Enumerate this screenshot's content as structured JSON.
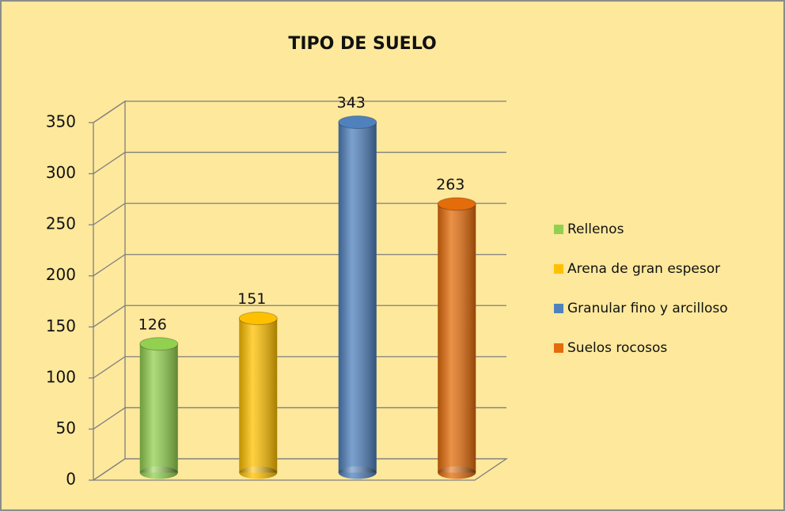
{
  "chart_data": {
    "type": "bar",
    "title": "TIPO DE SUELO",
    "series": [
      {
        "name": "Rellenos",
        "color": "#92d050",
        "values": [
          126
        ]
      },
      {
        "name": "Arena de gran espesor",
        "color": "#ffc000",
        "values": [
          151
        ]
      },
      {
        "name": "Granular fino y arcilloso",
        "color": "#4f81bd",
        "values": [
          343
        ]
      },
      {
        "name": "Suelos rocosos",
        "color": "#e46c0a",
        "values": [
          263
        ]
      }
    ],
    "ylim": [
      0,
      350
    ],
    "yticks": [
      0,
      50,
      100,
      150,
      200,
      250,
      300,
      350
    ],
    "grid": true,
    "legend": "right"
  }
}
